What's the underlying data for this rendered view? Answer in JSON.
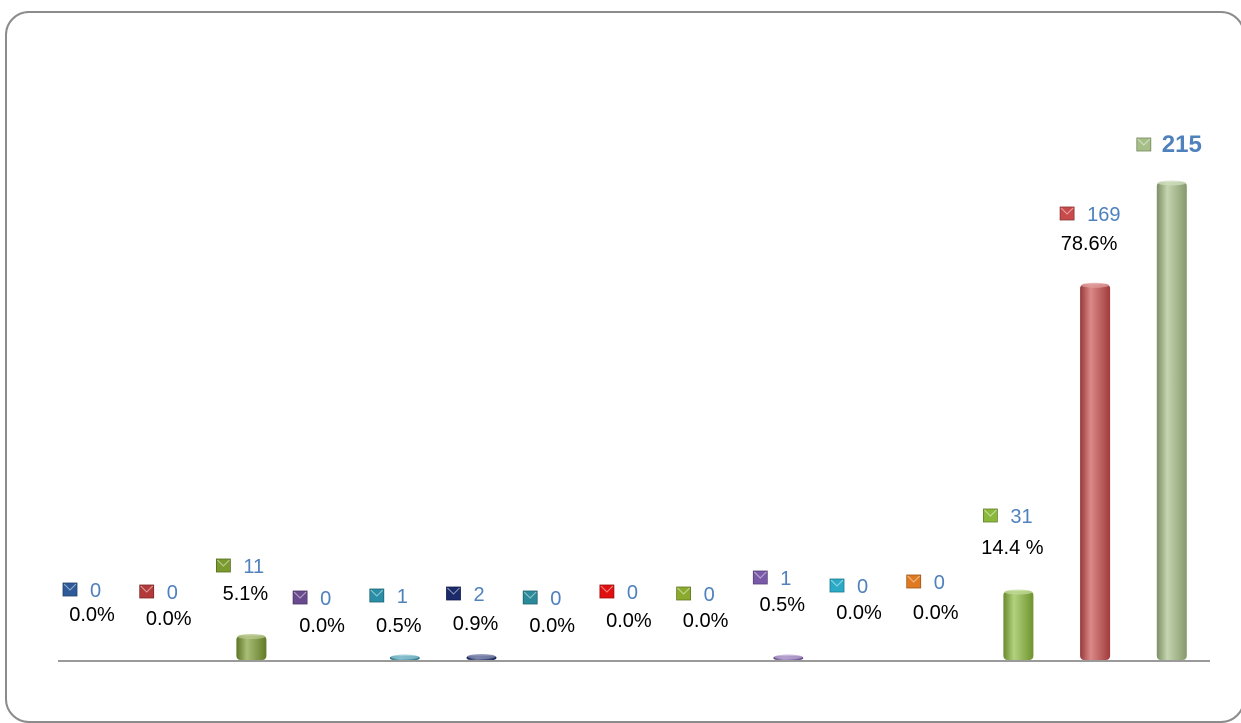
{
  "chart_data": {
    "type": "bar",
    "points": [
      {
        "value": 0,
        "value_label": "0",
        "pct_label": "0.0%",
        "color": "#2e5a9a"
      },
      {
        "value": 0,
        "value_label": "0",
        "pct_label": "0.0%",
        "color": "#b33a3a"
      },
      {
        "value": 11,
        "value_label": "11",
        "pct_label": "5.1%",
        "color": "#7a9a2e"
      },
      {
        "value": 0,
        "value_label": "0",
        "pct_label": "0.0%",
        "color": "#6a4a8e"
      },
      {
        "value": 1,
        "value_label": "1",
        "pct_label": "0.5%",
        "color": "#2a8ea6"
      },
      {
        "value": 2,
        "value_label": "2",
        "pct_label": "0.9%",
        "color": "#1a2a6a"
      },
      {
        "value": 0,
        "value_label": "0",
        "pct_label": "0.0%",
        "color": "#2a8a9a"
      },
      {
        "value": 0,
        "value_label": "0",
        "pct_label": "0.0%",
        "color": "#e01010"
      },
      {
        "value": 0,
        "value_label": "0",
        "pct_label": "0.0%",
        "color": "#8aaa2e"
      },
      {
        "value": 1,
        "value_label": "1",
        "pct_label": "0.5%",
        "color": "#7a5aa8"
      },
      {
        "value": 0,
        "value_label": "0",
        "pct_label": "0.0%",
        "color": "#2aaac6"
      },
      {
        "value": 0,
        "value_label": "0",
        "pct_label": "0.0%",
        "color": "#e07a20"
      },
      {
        "value": 31,
        "value_label": "31",
        "pct_label": "14.4 %",
        "color": "#8ab83a"
      },
      {
        "value": 169,
        "value_label": "169",
        "pct_label": "78.6%",
        "color": "#c84a4a"
      },
      {
        "value": 215,
        "value_label": "215",
        "pct_label": "",
        "color": "#a6bf86"
      }
    ],
    "ylim": [
      0,
      215
    ],
    "grid": false,
    "value_label_color": "#4f81bd",
    "pct_label_color": "#000000"
  }
}
